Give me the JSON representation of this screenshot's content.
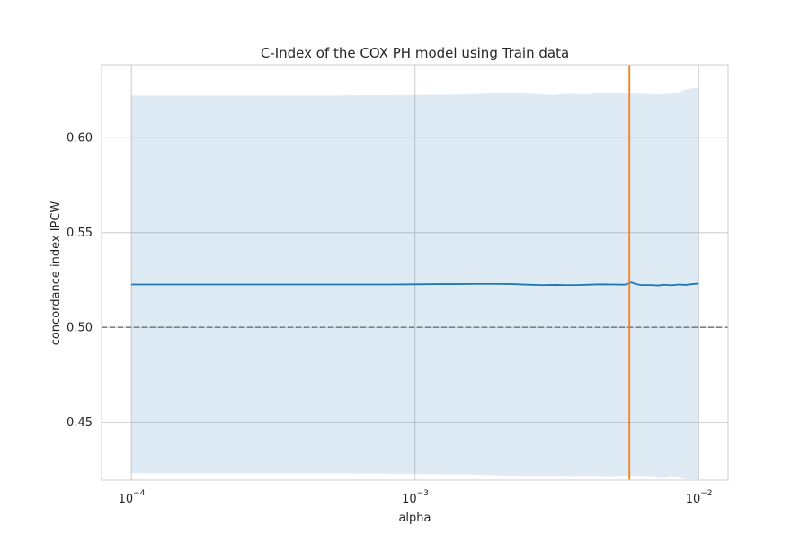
{
  "chart_data": {
    "type": "line",
    "title": "C-Index of the COX PH model using Train data",
    "xlabel": "alpha",
    "ylabel": "concordance index IPCW",
    "x_scale": "log",
    "xlim": [
      7.85e-05,
      0.0127
    ],
    "ylim": [
      0.4195,
      0.6385
    ],
    "x_ticks": [
      {
        "value": 0.0001,
        "base": "10",
        "exponent": "−4"
      },
      {
        "value": 0.001,
        "base": "10",
        "exponent": "−3"
      },
      {
        "value": 0.01,
        "base": "10",
        "exponent": "−2"
      }
    ],
    "y_ticks": [
      {
        "value": 0.45,
        "label": "0.45"
      },
      {
        "value": 0.5,
        "label": "0.50"
      },
      {
        "value": 0.55,
        "label": "0.55"
      },
      {
        "value": 0.6,
        "label": "0.60"
      }
    ],
    "grid": true,
    "series": [
      {
        "type": "line",
        "color": "#1f77b4",
        "x": [
          0.0001,
          0.0002,
          0.0004,
          0.0006,
          0.0008,
          0.001,
          0.0012,
          0.0014,
          0.0016,
          0.0018,
          0.002,
          0.0022,
          0.0025,
          0.0028,
          0.0031,
          0.0034,
          0.0037,
          0.0041,
          0.0045,
          0.005,
          0.0055,
          0.0058,
          0.006,
          0.0063,
          0.0068,
          0.0072,
          0.0076,
          0.008,
          0.0085,
          0.009,
          0.0095,
          0.01
        ],
        "y": [
          0.5226,
          0.5226,
          0.5226,
          0.5226,
          0.5226,
          0.5227,
          0.5228,
          0.5228,
          0.5229,
          0.5229,
          0.5229,
          0.5228,
          0.5225,
          0.5223,
          0.5224,
          0.5223,
          0.5223,
          0.5225,
          0.5227,
          0.5226,
          0.5225,
          0.5237,
          0.5228,
          0.5223,
          0.5223,
          0.5221,
          0.5225,
          0.5222,
          0.5226,
          0.5224,
          0.5228,
          0.5231
        ]
      },
      {
        "type": "band",
        "color": "#1f77b4",
        "opacity": 0.15,
        "x": [
          0.0001,
          0.0005,
          0.001,
          0.0015,
          0.002,
          0.0025,
          0.003,
          0.0035,
          0.004,
          0.0045,
          0.005,
          0.0055,
          0.006,
          0.0065,
          0.007,
          0.0075,
          0.008,
          0.0085,
          0.009,
          0.0095,
          0.01
        ],
        "upper": [
          0.6222,
          0.6222,
          0.6225,
          0.6228,
          0.6235,
          0.6233,
          0.6225,
          0.6232,
          0.6228,
          0.6235,
          0.6238,
          0.6232,
          0.6233,
          0.6231,
          0.6228,
          0.623,
          0.6232,
          0.6236,
          0.6255,
          0.626,
          0.6265
        ],
        "lower": [
          0.4232,
          0.4232,
          0.4228,
          0.4225,
          0.422,
          0.4218,
          0.4215,
          0.4212,
          0.4215,
          0.4213,
          0.421,
          0.4215,
          0.4218,
          0.4213,
          0.421,
          0.4205,
          0.4212,
          0.4208,
          0.42,
          0.42,
          0.42
        ]
      }
    ],
    "reference_lines": [
      {
        "orientation": "horizontal",
        "value": 0.5,
        "color": "#808080",
        "style": "dashed"
      },
      {
        "orientation": "vertical",
        "value": 0.0057,
        "color": "#ff7f0e",
        "style": "solid"
      }
    ]
  }
}
